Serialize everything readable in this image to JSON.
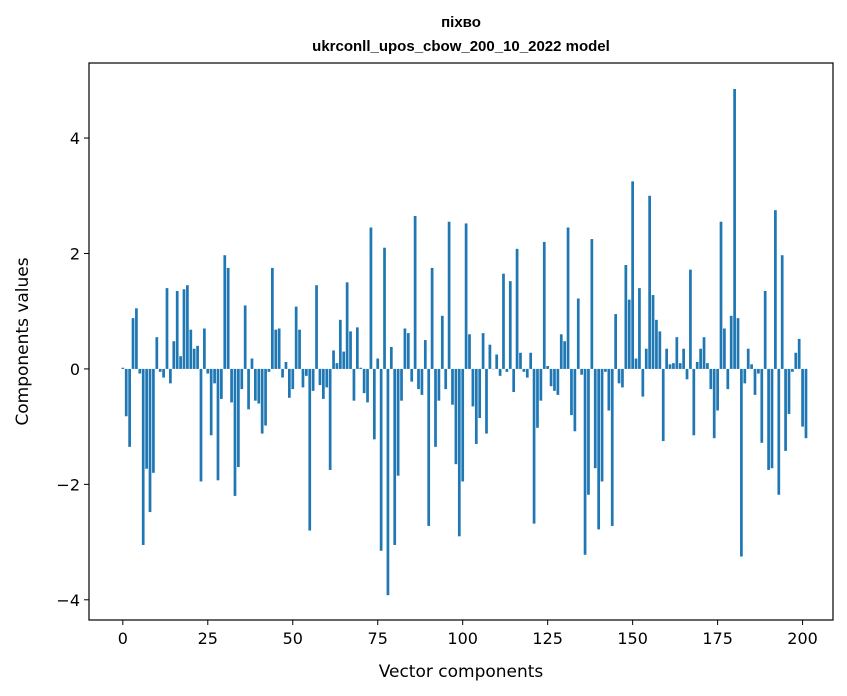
{
  "chart_data": {
    "type": "bar",
    "title": "піхво",
    "subtitle": "ukrconll_upos_cbow_200_10_2022 model",
    "xlabel": "Vector components",
    "ylabel": "Components values",
    "xlim": [
      -9.95,
      208.95
    ],
    "ylim": [
      -4.35,
      5.3
    ],
    "xticks": [
      0,
      25,
      50,
      75,
      100,
      125,
      150,
      175,
      200
    ],
    "yticks": [
      -4,
      -2,
      0,
      2,
      4
    ],
    "ytick_labels": [
      "−4",
      "−2",
      "0",
      "2",
      "4"
    ],
    "grid": false,
    "bar_color": "#1f77b4",
    "values": [
      0.02,
      -0.82,
      -1.35,
      0.88,
      1.05,
      -0.08,
      -3.05,
      -1.73,
      -2.48,
      -1.8,
      0.55,
      -0.05,
      -0.15,
      1.4,
      -0.25,
      0.48,
      1.35,
      0.22,
      1.38,
      1.45,
      0.68,
      0.35,
      0.4,
      -1.95,
      0.7,
      -0.08,
      -1.15,
      -0.25,
      -1.93,
      -0.52,
      1.97,
      1.75,
      -0.58,
      -2.2,
      -1.7,
      -0.35,
      1.1,
      -0.7,
      0.18,
      -0.55,
      -0.6,
      -1.12,
      -0.98,
      -0.05,
      1.75,
      0.68,
      0.7,
      -0.15,
      0.12,
      -0.5,
      -0.35,
      1.08,
      0.68,
      -0.32,
      -0.12,
      -2.8,
      -0.38,
      1.45,
      -0.28,
      -0.52,
      -0.32,
      -1.75,
      0.32,
      0.1,
      0.85,
      0.3,
      1.5,
      0.65,
      -0.55,
      0.72,
      0.02,
      -0.42,
      -0.58,
      2.45,
      -1.22,
      0.18,
      -3.15,
      2.1,
      -3.92,
      0.38,
      -3.05,
      -1.85,
      -0.55,
      0.7,
      0.62,
      -0.22,
      2.65,
      -0.35,
      -0.45,
      0.5,
      -2.72,
      1.75,
      -1.35,
      -0.55,
      0.92,
      -0.35,
      2.55,
      -0.62,
      -1.65,
      -2.9,
      -1.95,
      2.52,
      0.6,
      -0.65,
      -1.3,
      -0.85,
      0.62,
      -1.12,
      0.42,
      0.0,
      0.25,
      -0.12,
      1.65,
      -0.05,
      1.52,
      -0.4,
      2.08,
      0.28,
      -0.05,
      -0.15,
      0.28,
      -2.68,
      -1.02,
      -0.55,
      2.2,
      0.05,
      -0.3,
      -0.38,
      -0.45,
      0.6,
      0.48,
      2.45,
      -0.8,
      -1.08,
      1.22,
      -0.1,
      -3.22,
      -2.18,
      2.25,
      -1.72,
      -2.78,
      -1.95,
      -0.05,
      -0.72,
      -2.72,
      0.95,
      -0.25,
      -0.32,
      1.8,
      1.2,
      3.25,
      0.18,
      1.4,
      -0.48,
      0.35,
      3.0,
      1.28,
      0.85,
      0.65,
      -1.25,
      0.35,
      0.08,
      0.1,
      0.55,
      0.1,
      0.35,
      -0.18,
      1.72,
      -1.15,
      0.12,
      0.35,
      0.55,
      0.1,
      -0.35,
      -1.2,
      -0.72,
      2.55,
      0.7,
      -0.35,
      0.92,
      4.85,
      0.88,
      -3.25,
      -0.25,
      0.35,
      0.08,
      -0.45,
      -0.08,
      -1.28,
      1.35,
      -1.75,
      -1.72,
      2.75,
      -2.18,
      1.97,
      -1.42,
      -0.78,
      -0.05,
      0.28,
      0.52,
      -1.0,
      -1.2
    ]
  }
}
